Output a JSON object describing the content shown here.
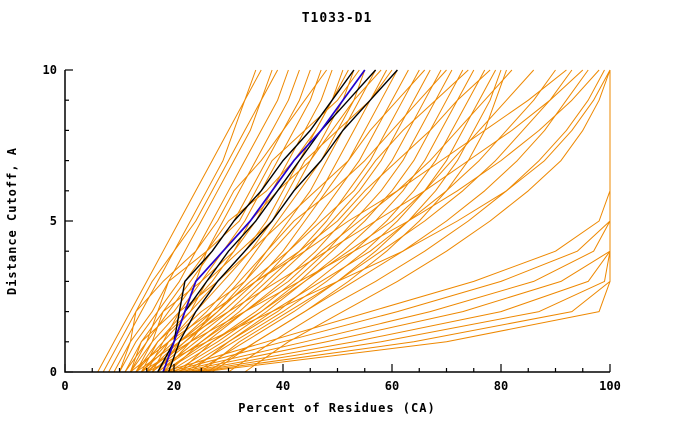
{
  "chart_data": {
    "type": "line",
    "title": "T1033-D1",
    "xlabel": "Percent of Residues (CA)",
    "ylabel": "Distance Cutoff, A",
    "xlim": [
      0,
      100
    ],
    "ylim": [
      0,
      10
    ],
    "x_ticks": [
      0,
      20,
      40,
      60,
      80,
      100
    ],
    "x_tick_labels": [
      "0",
      "20",
      "40",
      "60",
      "80",
      "100"
    ],
    "x_minor_step": 5,
    "y_ticks": [
      0,
      5,
      10
    ],
    "y_tick_labels": [
      "0",
      "5",
      "10"
    ],
    "y_minor_step": 1,
    "grid": false,
    "legend": "none",
    "colors": {
      "ensemble": "#ee8800",
      "reference": "#000000",
      "highlight": "#2200cc",
      "axis": "#000000",
      "background": "#ffffff"
    },
    "y_levels": [
      0,
      1,
      2,
      3,
      4,
      5,
      6,
      7,
      8,
      9,
      10
    ],
    "series": {
      "orange_models": [
        [
          8,
          11,
          14,
          17,
          20,
          23,
          26,
          29,
          31,
          33,
          35
        ],
        [
          9,
          12,
          16,
          19,
          22,
          25,
          28,
          31,
          34,
          36,
          38
        ],
        [
          10,
          13,
          17,
          21,
          24,
          27,
          30,
          33,
          36,
          39,
          41
        ],
        [
          11,
          14,
          18,
          22,
          26,
          29,
          32,
          35,
          38,
          41,
          43
        ],
        [
          12,
          15,
          19,
          23,
          27,
          31,
          34,
          37,
          40,
          43,
          45
        ],
        [
          12,
          16,
          21,
          25,
          29,
          33,
          36,
          39,
          42,
          45,
          47
        ],
        [
          13,
          17,
          22,
          27,
          31,
          35,
          38,
          41,
          44,
          47,
          49
        ],
        [
          13,
          18,
          23,
          28,
          33,
          37,
          40,
          43,
          46,
          49,
          51
        ],
        [
          14,
          19,
          24,
          29,
          34,
          38,
          42,
          45,
          48,
          51,
          53
        ],
        [
          14,
          20,
          26,
          31,
          35,
          39,
          43,
          47,
          50,
          53,
          55
        ],
        [
          15,
          21,
          27,
          32,
          37,
          41,
          45,
          48,
          51,
          54,
          57
        ],
        [
          15,
          22,
          28,
          33,
          38,
          43,
          47,
          50,
          53,
          56,
          59
        ],
        [
          16,
          22,
          29,
          35,
          40,
          44,
          48,
          52,
          55,
          58,
          61
        ],
        [
          16,
          23,
          30,
          36,
          41,
          46,
          50,
          54,
          57,
          60,
          63
        ],
        [
          17,
          24,
          31,
          37,
          43,
          48,
          52,
          56,
          59,
          62,
          65
        ],
        [
          17,
          25,
          32,
          38,
          44,
          49,
          54,
          58,
          61,
          64,
          67
        ],
        [
          18,
          26,
          33,
          40,
          46,
          51,
          56,
          60,
          63,
          66,
          69
        ],
        [
          18,
          27,
          35,
          42,
          48,
          53,
          58,
          62,
          65,
          68,
          71
        ],
        [
          19,
          28,
          36,
          43,
          49,
          55,
          60,
          64,
          67,
          70,
          73
        ],
        [
          20,
          29,
          37,
          44,
          51,
          57,
          62,
          66,
          69,
          72,
          75
        ],
        [
          21,
          30,
          39,
          46,
          53,
          59,
          64,
          68,
          71,
          74,
          77
        ],
        [
          22,
          31,
          40,
          48,
          55,
          61,
          66,
          70,
          73,
          76,
          79
        ],
        [
          24,
          33,
          42,
          50,
          57,
          63,
          68,
          72,
          75,
          78,
          80
        ],
        [
          26,
          35,
          44,
          52,
          59,
          65,
          70,
          74,
          77,
          79,
          81
        ],
        [
          10,
          12,
          13,
          18,
          24,
          28,
          31,
          36,
          40,
          44,
          48
        ],
        [
          11,
          15,
          17,
          19,
          26,
          32,
          35,
          38,
          44,
          50,
          54
        ],
        [
          12,
          14,
          20,
          24,
          26,
          30,
          37,
          42,
          46,
          49,
          52
        ],
        [
          13,
          16,
          18,
          25,
          31,
          34,
          39,
          45,
          49,
          53,
          58
        ],
        [
          14,
          17,
          23,
          26,
          32,
          38,
          41,
          44,
          50,
          56,
          60
        ],
        [
          15,
          18,
          21,
          28,
          34,
          40,
          46,
          52,
          56,
          61,
          66
        ],
        [
          16,
          19,
          25,
          33,
          37,
          42,
          49,
          55,
          60,
          65,
          70
        ],
        [
          17,
          21,
          28,
          34,
          41,
          47,
          53,
          57,
          62,
          68,
          74
        ],
        [
          18,
          23,
          27,
          35,
          43,
          50,
          55,
          61,
          67,
          72,
          78
        ],
        [
          19,
          25,
          33,
          41,
          47,
          54,
          61,
          67,
          72,
          77,
          82
        ],
        [
          21,
          27,
          36,
          44,
          52,
          60,
          66,
          71,
          76,
          81,
          86
        ],
        [
          23,
          30,
          38,
          47,
          56,
          63,
          70,
          76,
          81,
          86,
          90
        ],
        [
          25,
          32,
          41,
          50,
          58,
          66,
          73,
          79,
          84,
          89,
          93
        ],
        [
          27,
          35,
          44,
          53,
          62,
          70,
          77,
          83,
          88,
          92,
          96
        ],
        [
          30,
          38,
          47,
          57,
          66,
          74,
          81,
          87,
          92,
          96,
          99
        ],
        [
          33,
          41,
          51,
          61,
          70,
          78,
          85,
          91,
          95,
          98,
          100
        ],
        [
          6,
          9,
          12,
          15,
          18,
          21,
          24,
          27,
          30,
          33,
          36
        ],
        [
          7,
          10,
          13,
          16,
          20,
          24,
          27,
          30,
          33,
          36,
          39
        ],
        [
          18,
          37,
          56,
          75,
          90,
          98,
          100,
          100,
          100,
          100,
          100
        ],
        [
          19,
          40,
          61,
          80,
          94,
          100,
          100,
          100,
          100,
          100,
          100
        ],
        [
          20,
          44,
          67,
          86,
          97,
          100,
          100,
          100,
          100,
          100,
          100
        ],
        [
          21,
          48,
          73,
          91,
          100,
          100,
          100,
          100,
          100,
          100,
          100
        ],
        [
          22,
          53,
          80,
          96,
          100,
          100,
          100,
          100,
          100,
          100,
          100
        ],
        [
          23,
          58,
          87,
          99,
          100,
          100,
          100,
          100,
          100,
          100,
          100
        ],
        [
          24,
          64,
          93,
          100,
          100,
          100,
          100,
          100,
          100,
          100,
          100
        ],
        [
          25,
          70,
          98,
          100,
          100,
          100,
          100,
          100,
          100,
          100,
          100
        ],
        [
          15,
          26,
          38,
          50,
          62,
          72,
          81,
          88,
          93,
          97,
          100
        ],
        [
          14,
          23,
          33,
          43,
          53,
          63,
          72,
          80,
          87,
          93,
          98
        ],
        [
          13,
          21,
          30,
          39,
          48,
          57,
          66,
          74,
          82,
          89,
          95
        ],
        [
          12,
          19,
          27,
          35,
          44,
          52,
          61,
          69,
          77,
          85,
          92
        ]
      ],
      "black_models": [
        [
          17,
          20,
          21,
          22,
          27,
          31,
          36,
          40,
          45,
          49,
          53
        ],
        [
          18,
          20,
          22,
          26,
          30,
          35,
          39,
          43,
          47,
          52,
          57
        ],
        [
          19,
          21,
          24,
          28,
          33,
          38,
          42,
          47,
          51,
          56,
          61
        ]
      ],
      "blue_models": [
        [
          18,
          20,
          22,
          24,
          29,
          34,
          38,
          42,
          47,
          51,
          55
        ]
      ]
    }
  }
}
